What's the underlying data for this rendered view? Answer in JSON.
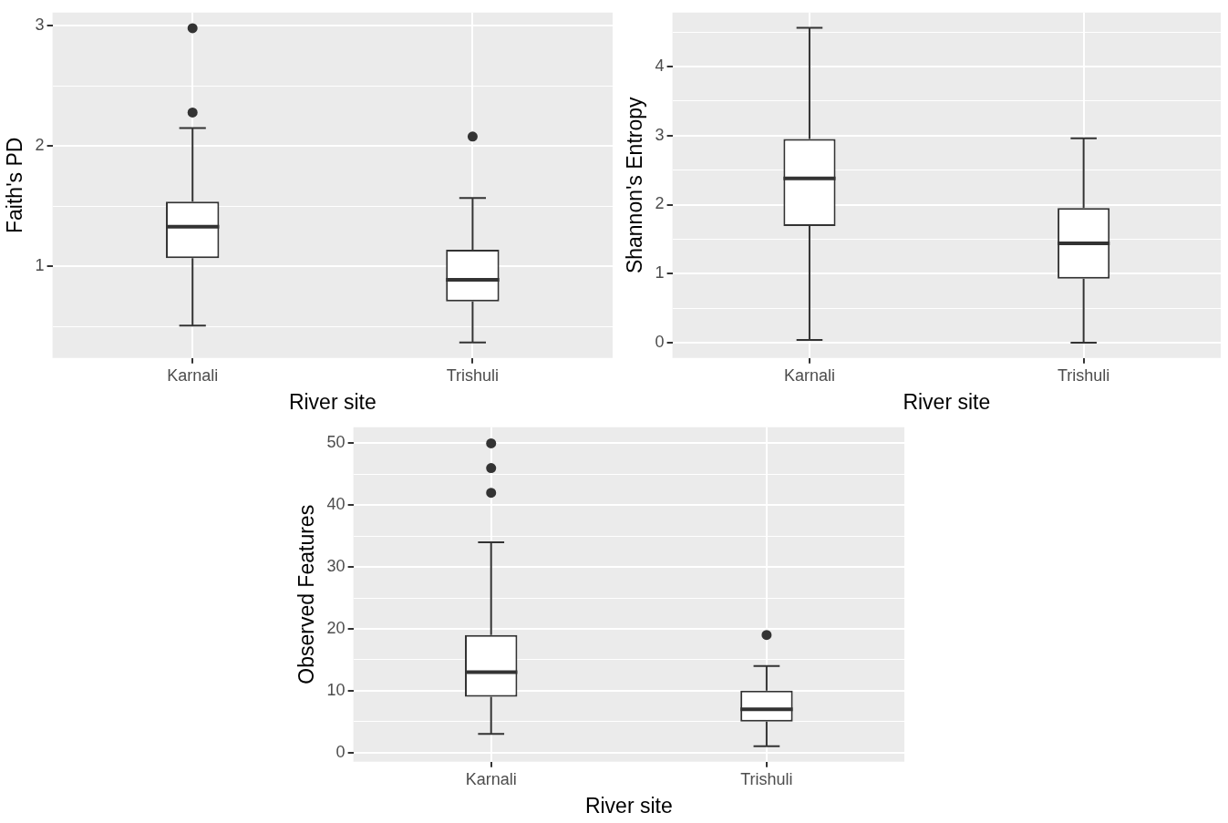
{
  "chart_data": [
    {
      "type": "box",
      "xlabel": "River site",
      "ylabel": "Faith's PD",
      "categories": [
        "Karnali",
        "Trishuli"
      ],
      "boxes": [
        {
          "low": 0.51,
          "q1": 1.07,
          "median": 1.33,
          "q3": 1.54,
          "high": 2.15,
          "outliers": [
            2.98,
            2.28
          ]
        },
        {
          "low": 0.37,
          "q1": 0.71,
          "median": 0.89,
          "q3": 1.14,
          "high": 1.57,
          "outliers": [
            2.08
          ]
        }
      ],
      "ylim": [
        0.24,
        3.11
      ],
      "yticks": [
        {
          "value": 0.5,
          "label": null
        },
        1,
        {
          "value": 1.5,
          "label": null
        },
        2,
        {
          "value": 2.5,
          "label": null
        },
        3
      ],
      "grid": true
    },
    {
      "type": "box",
      "xlabel": "River site",
      "ylabel": "Shannon's Entropy",
      "categories": [
        "Karnali",
        "Trishuli"
      ],
      "boxes": [
        {
          "low": 0.04,
          "q1": 1.69,
          "median": 2.38,
          "q3": 2.95,
          "high": 4.56
        },
        {
          "low": 0,
          "q1": 0.93,
          "median": 1.44,
          "q3": 1.95,
          "high": 2.96
        }
      ],
      "ylim": [
        -0.22,
        4.78
      ],
      "yticks": [
        0,
        {
          "value": 0.5,
          "label": null
        },
        1,
        {
          "value": 1.5,
          "label": null
        },
        2,
        {
          "value": 2.5,
          "label": null
        },
        3,
        {
          "value": 3.5,
          "label": null
        },
        4,
        {
          "value": 4.5,
          "label": null
        }
      ],
      "grid": true
    },
    {
      "type": "box",
      "xlabel": "River site",
      "ylabel": "Observed Features",
      "categories": [
        "Karnali",
        "Trishuli"
      ],
      "boxes": [
        {
          "low": 3,
          "q1": 9,
          "median": 13,
          "q3": 19,
          "high": 34,
          "outliers": [
            50,
            46,
            42
          ]
        },
        {
          "low": 1,
          "q1": 5,
          "median": 7,
          "q3": 10,
          "high": 14,
          "outliers": [
            19
          ]
        }
      ],
      "ylim": [
        -1.5,
        52.6
      ],
      "yticks": [
        0,
        {
          "value": 5,
          "label": null
        },
        10,
        {
          "value": 15,
          "label": null
        },
        20,
        {
          "value": 25,
          "label": null
        },
        30,
        {
          "value": 35,
          "label": null
        },
        40,
        {
          "value": 45,
          "label": null
        },
        50
      ],
      "grid": true
    }
  ]
}
